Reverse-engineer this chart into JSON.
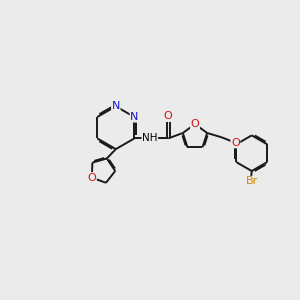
{
  "bg_color": "#ebebeb",
  "bond_color": "#1a1a1a",
  "nitrogen_color": "#1414cc",
  "oxygen_color": "#cc1414",
  "bromine_color": "#cc8800",
  "line_width": 1.4,
  "figsize": [
    3.0,
    3.0
  ],
  "dpi": 100,
  "xlim": [
    0,
    10
  ],
  "ylim": [
    0,
    10
  ]
}
